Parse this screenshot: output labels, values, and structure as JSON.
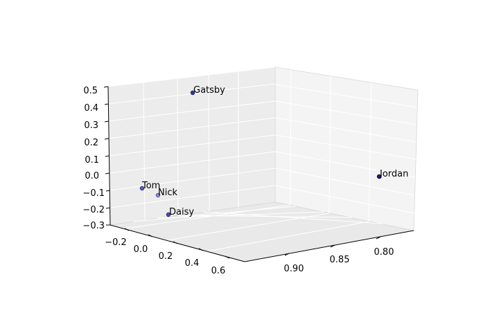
{
  "chart_data": {
    "type": "scatter",
    "projection": "3d",
    "title": "",
    "xlabel": "",
    "ylabel": "",
    "zlabel": "",
    "grid": true,
    "marker_color": "#3333aa",
    "points": [
      {
        "label": "Gatsby",
        "x": 0.05,
        "y": 0.895,
        "z": 0.5
      },
      {
        "label": "Jordan",
        "x": 0.75,
        "y": 0.8,
        "z": 0.25
      },
      {
        "label": "Tom",
        "x": -0.25,
        "y": 0.895,
        "z": -0.05
      },
      {
        "label": "Nick",
        "x": -0.15,
        "y": 0.905,
        "z": -0.075
      },
      {
        "label": "Daisy",
        "x": 0.05,
        "y": 0.925,
        "z": -0.12
      }
    ],
    "z_ticks": [
      "0.5",
      "0.4",
      "0.3",
      "0.2",
      "0.1",
      "0.0",
      "−0.1",
      "−0.2",
      "−0.3"
    ],
    "x_ticks": [
      "−0.2",
      "0.0",
      "0.2",
      "0.4",
      "0.6"
    ],
    "y_ticks": [
      "0.90",
      "0.85",
      "0.80"
    ]
  }
}
